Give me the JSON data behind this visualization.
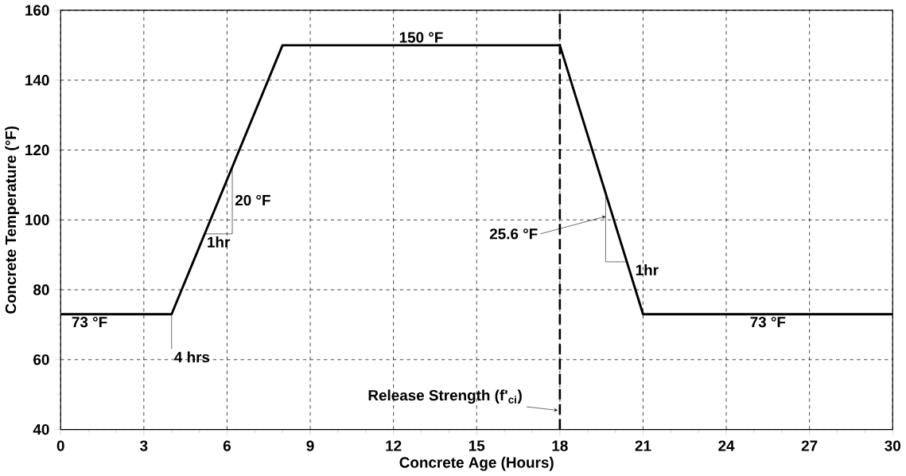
{
  "chart_data": {
    "type": "line",
    "xlabel": "Concrete Age (Hours)",
    "ylabel": "Concrete Temperature (°F)",
    "series": [
      {
        "x": [
          0,
          4,
          8,
          18,
          21,
          30
        ],
        "values": [
          73,
          73,
          150,
          150,
          73,
          73
        ],
        "color": "#000000"
      }
    ],
    "xlim": [
      0,
      30
    ],
    "ylim": [
      40,
      160
    ],
    "xticks": [
      0,
      3,
      6,
      9,
      12,
      15,
      18,
      21,
      24,
      27,
      30
    ],
    "yticks": [
      40,
      60,
      80,
      100,
      120,
      140,
      160
    ],
    "grid": true,
    "marker": "none",
    "line_style": "solid",
    "ref_lines": [
      {
        "axis": "x",
        "value": 18,
        "label": "Release Strength (f'$_{ci}$)",
        "color": "#000000",
        "line_style": "dashed"
      }
    ],
    "annotations": [
      {
        "text": "150 °F",
        "x": 13,
        "y": 150
      },
      {
        "text": "73 °F",
        "x": 0.3,
        "y": 73
      },
      {
        "text": "73 °F",
        "x": 25.5,
        "y": 73
      },
      {
        "text": "4 hrs",
        "x": 4,
        "y": 73
      },
      "20 °F",
      {
        "text": "1hr",
        "x": 5.19,
        "y": 96
      },
      "25.6 °F",
      {
        "text": "1hr",
        "x": 20.42,
        "y": 88
      }
    ]
  }
}
